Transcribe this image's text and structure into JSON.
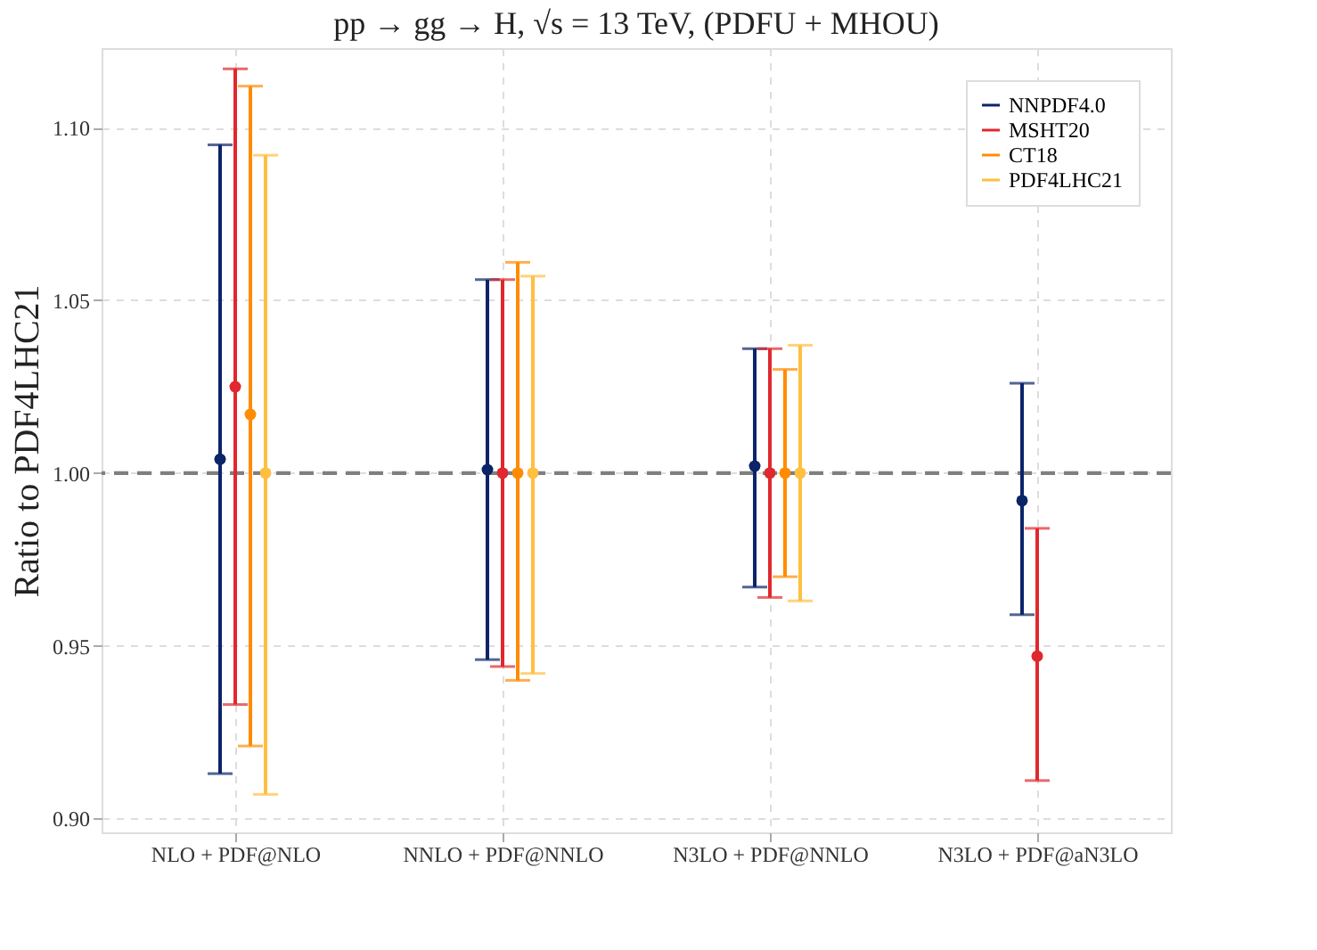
{
  "chart_data": {
    "type": "scatter",
    "title": "pp → gg → H,  √s = 13 TeV, (PDFU + MHOU)",
    "ylabel": "Ratio to PDF4LHC21",
    "categories": [
      "NLO + PDF@NLO",
      "NNLO + PDF@NNLO",
      "N3LO + PDF@NNLO",
      "N3LO + PDF@aN3LO"
    ],
    "series": [
      {
        "name": "NNPDF4.0",
        "color": "#0c2468",
        "values": [
          1.004,
          1.001,
          1.002,
          0.992
        ],
        "errors": [
          [
            0.913,
            1.095
          ],
          [
            0.946,
            1.056
          ],
          [
            0.967,
            1.036
          ],
          [
            0.959,
            1.026
          ]
        ]
      },
      {
        "name": "MSHT20",
        "color": "#e0282e",
        "values": [
          1.025,
          1.0,
          1.0,
          0.947
        ],
        "errors": [
          [
            0.933,
            1.117
          ],
          [
            0.944,
            1.056
          ],
          [
            0.964,
            1.036
          ],
          [
            0.911,
            0.984
          ]
        ]
      },
      {
        "name": "CT18",
        "color": "#ff8c00",
        "values": [
          1.017,
          1.0,
          1.0,
          null
        ],
        "errors": [
          [
            0.921,
            1.112
          ],
          [
            0.94,
            1.061
          ],
          [
            0.97,
            1.03
          ],
          null
        ]
      },
      {
        "name": "PDF4LHC21",
        "color": "#ffbf40",
        "values": [
          1.0,
          1.0,
          1.0,
          null
        ],
        "errors": [
          [
            0.907,
            1.092
          ],
          [
            0.942,
            1.057
          ],
          [
            0.963,
            1.037
          ],
          null
        ]
      }
    ],
    "ylim": [
      0.896,
      1.123
    ],
    "yticks": [
      {
        "value": 0.9,
        "label": "0.90"
      },
      {
        "value": 0.95,
        "label": "0.95"
      },
      {
        "value": 1.0,
        "label": "1.00"
      },
      {
        "value": 1.05,
        "label": "1.05"
      },
      {
        "value": 1.1,
        "label": "1.10"
      }
    ],
    "ref_lines": [
      {
        "axis": "y",
        "value": 1.0,
        "label": null,
        "color": "#7f7f7f",
        "line_style": "dashed"
      }
    ],
    "grid": true,
    "legend": "top right",
    "marker": "circle"
  }
}
